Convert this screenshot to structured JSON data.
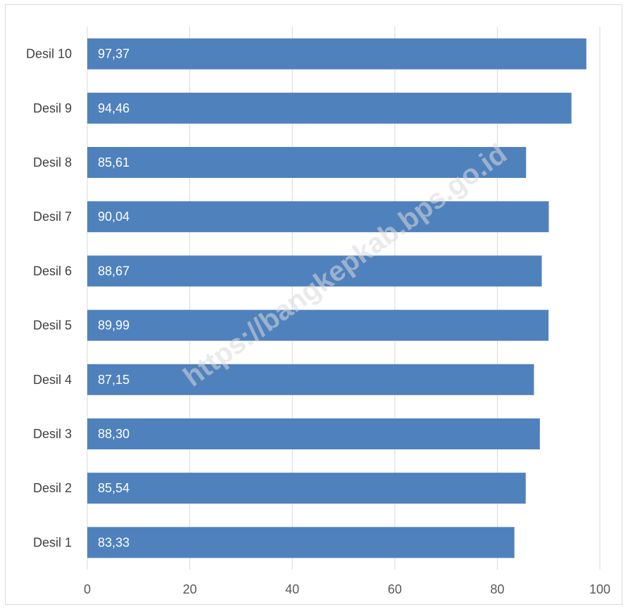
{
  "chart_data": {
    "type": "bar",
    "orientation": "horizontal",
    "categories": [
      "Desil 10",
      "Desil 9",
      "Desil 8",
      "Desil 7",
      "Desil 6",
      "Desil 5",
      "Desil 4",
      "Desil 3",
      "Desil 2",
      "Desil 1"
    ],
    "values": [
      97.37,
      94.46,
      85.61,
      90.04,
      88.67,
      89.99,
      87.15,
      88.3,
      85.54,
      83.33
    ],
    "value_labels": [
      "97,37",
      "94,46",
      "85,61",
      "90,04",
      "88,67",
      "89,99",
      "87,15",
      "88,30",
      "85,54",
      "83,33"
    ],
    "xlim": [
      0,
      100
    ],
    "x_ticks": [
      "0",
      "20",
      "40",
      "60",
      "80",
      "100"
    ],
    "grid": true,
    "bar_color": "#4f81bd",
    "title": "",
    "xlabel": "",
    "ylabel": ""
  },
  "watermark": "https://bangkepkab.bps.go.id"
}
